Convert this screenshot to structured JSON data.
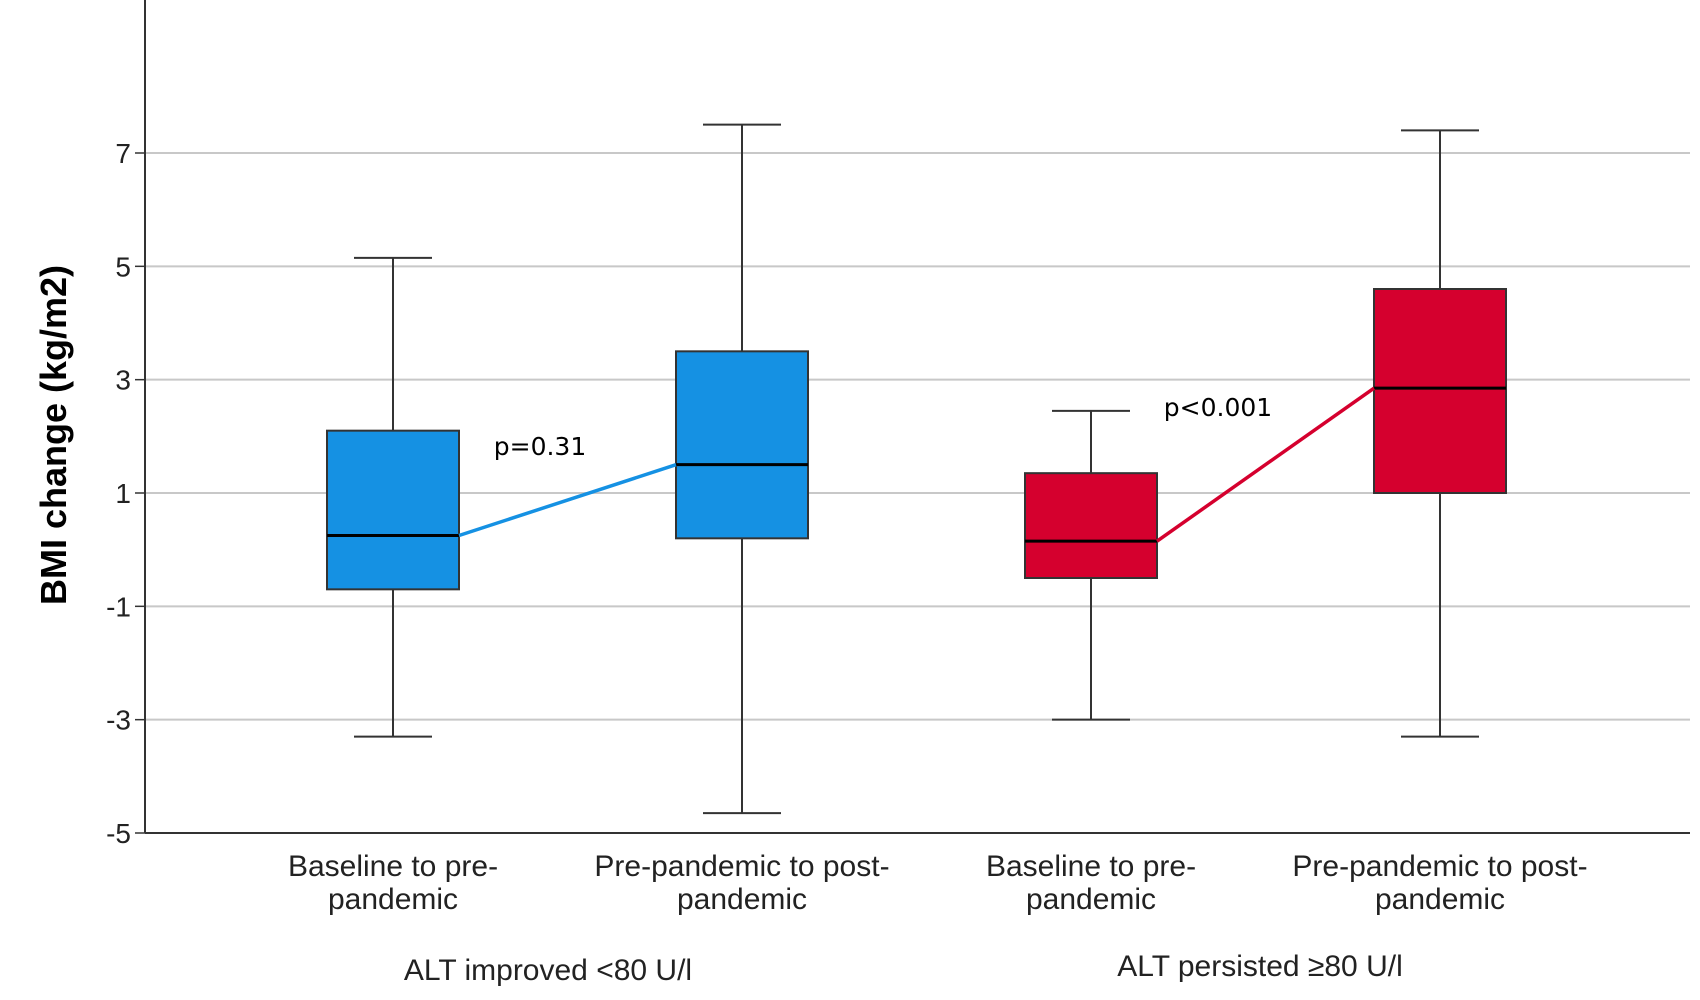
{
  "chart_data": {
    "type": "box",
    "ylabel": "BMI change (kg/m2)",
    "ylim": [
      -5,
      9.7
    ],
    "yticks": [
      7,
      5,
      3,
      1,
      -1,
      -3,
      -5
    ],
    "grid": true,
    "groups": [
      {
        "label": "ALT improved <80 U/l",
        "color": "#1591e3",
        "annotation": "p=0.31",
        "boxes": [
          {
            "label_lines": [
              "Baseline to pre-",
              "pandemic"
            ],
            "min": -3.3,
            "q1": -0.7,
            "median": 0.25,
            "q3": 2.1,
            "max": 5.15
          },
          {
            "label_lines": [
              "Pre-pandemic to post-",
              "pandemic"
            ],
            "min": -4.65,
            "q1": 0.2,
            "median": 1.5,
            "q3": 3.5,
            "max": 7.5
          }
        ]
      },
      {
        "label": "ALT persisted ≥80 U/l",
        "color": "#d5002e",
        "annotation": "p<0.001",
        "boxes": [
          {
            "label_lines": [
              "Baseline to pre-",
              "pandemic"
            ],
            "min": -3.0,
            "q1": -0.5,
            "median": 0.15,
            "q3": 1.35,
            "max": 2.45
          },
          {
            "label_lines": [
              "Pre-pandemic to post-",
              "pandemic"
            ],
            "min": -3.3,
            "q1": 1.0,
            "median": 2.85,
            "q3": 4.6,
            "max": 7.4
          }
        ]
      }
    ]
  }
}
